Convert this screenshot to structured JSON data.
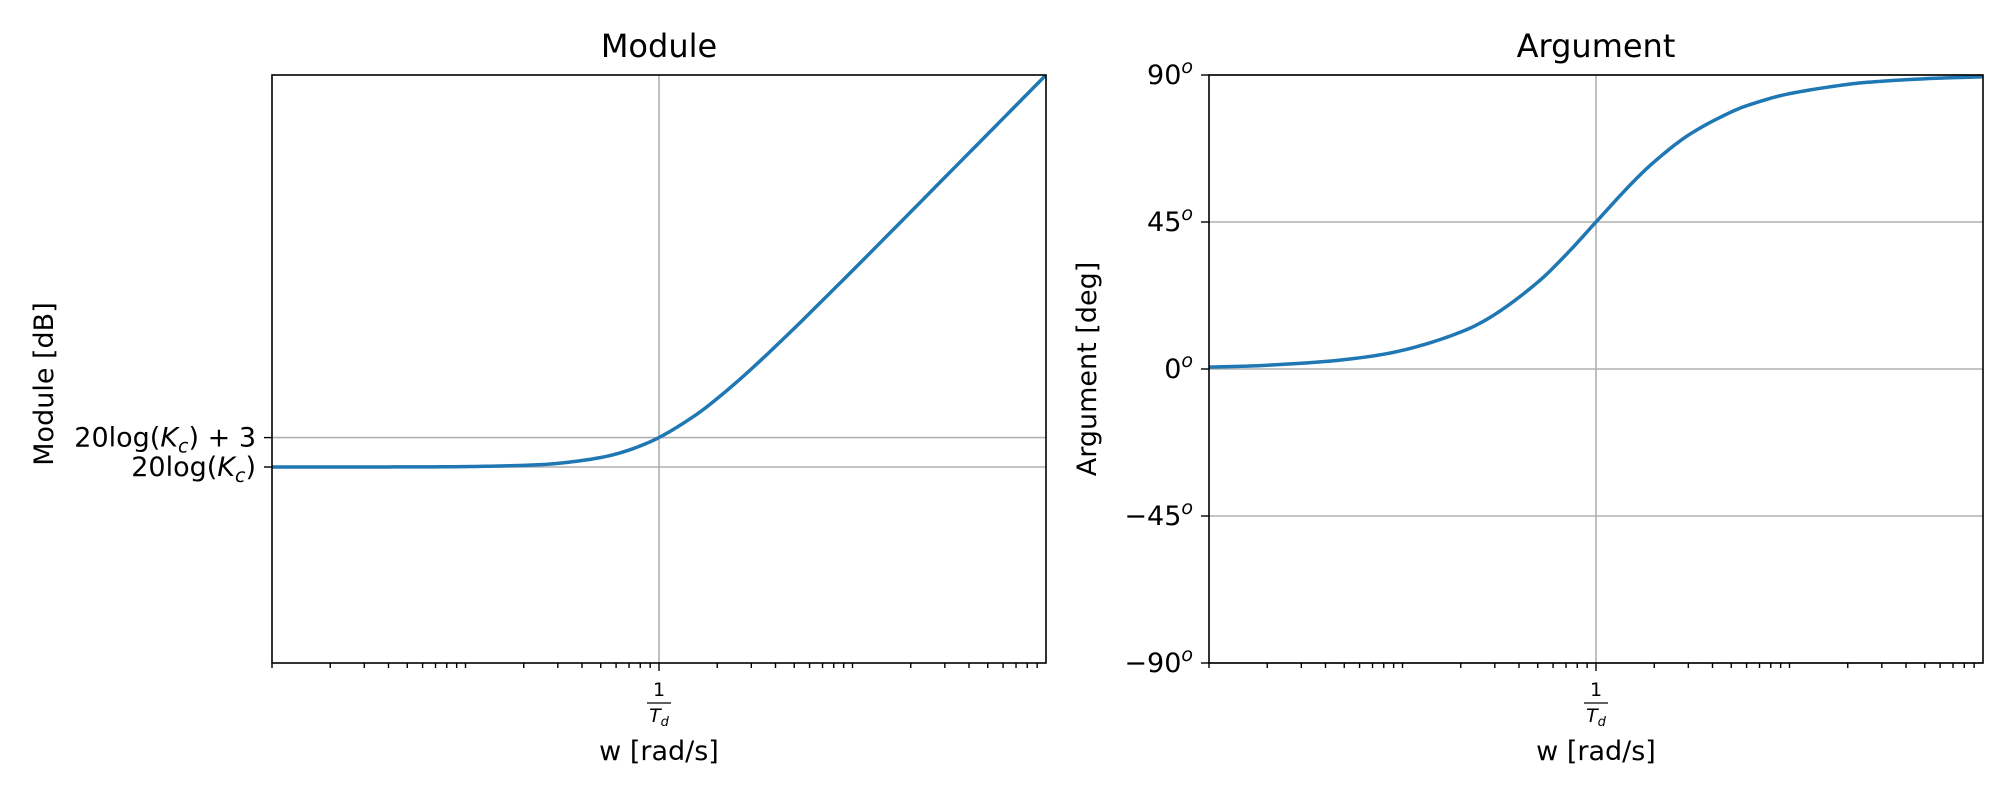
{
  "chart_data": [
    {
      "type": "line",
      "title": "Module",
      "xlabel": "w [rad/s]",
      "ylabel": "Module [dB]",
      "xscale": "log",
      "x_unit": "w·Td (rad/s, normalized to 1/Td)",
      "xlim": [
        0.01,
        100
      ],
      "ylim": [
        -20,
        40
      ],
      "grid": true,
      "x_ticks": [
        {
          "value": 1,
          "num": "1",
          "den": "T",
          "den_sub": "d"
        }
      ],
      "y_ticks": [
        {
          "value": 0,
          "pre": "20log(",
          "var": "K",
          "sub": "c",
          "post": ")"
        },
        {
          "value": 3,
          "pre": "20log(",
          "var": "K",
          "sub": "c",
          "post": ") + 3"
        }
      ],
      "series": [
        {
          "color": "#1f77b4",
          "x": [
            0.01,
            0.02,
            0.05,
            0.1,
            0.2,
            0.3,
            0.5,
            0.7,
            1,
            1.5,
            2,
            3,
            5,
            7,
            10,
            20,
            30,
            50,
            70,
            100
          ],
          "values": [
            0.0,
            0.0,
            0.01,
            0.04,
            0.17,
            0.37,
            0.97,
            1.73,
            3.01,
            5.12,
            6.99,
            10.0,
            14.15,
            17.0,
            20.04,
            26.03,
            29.55,
            33.98,
            36.9,
            40.0
          ]
        }
      ]
    },
    {
      "type": "line",
      "title": "Argument",
      "xlabel": "w [rad/s]",
      "ylabel": "Argument [deg]",
      "xscale": "log",
      "xlim": [
        0.01,
        100
      ],
      "ylim": [
        -90,
        90
      ],
      "grid": true,
      "x_ticks": [
        {
          "value": 1,
          "num": "1",
          "den": "T",
          "den_sub": "d"
        }
      ],
      "y_ticks": [
        {
          "value": -90,
          "label": "−90",
          "sup": "o"
        },
        {
          "value": -45,
          "label": "−45",
          "sup": "o"
        },
        {
          "value": 0,
          "label": "0",
          "sup": "o"
        },
        {
          "value": 45,
          "label": "45",
          "sup": "o"
        },
        {
          "value": 90,
          "label": "90",
          "sup": "o"
        }
      ],
      "series": [
        {
          "color": "#1f77b4",
          "x": [
            0.01,
            0.02,
            0.05,
            0.1,
            0.2,
            0.3,
            0.5,
            0.7,
            1,
            1.5,
            2,
            3,
            5,
            7,
            10,
            20,
            30,
            50,
            70,
            100
          ],
          "values": [
            0.57,
            1.15,
            2.86,
            5.71,
            11.31,
            16.7,
            26.57,
            34.99,
            45.0,
            56.31,
            63.43,
            71.57,
            78.69,
            81.87,
            84.29,
            87.14,
            88.09,
            88.85,
            89.18,
            89.43
          ]
        }
      ]
    }
  ]
}
